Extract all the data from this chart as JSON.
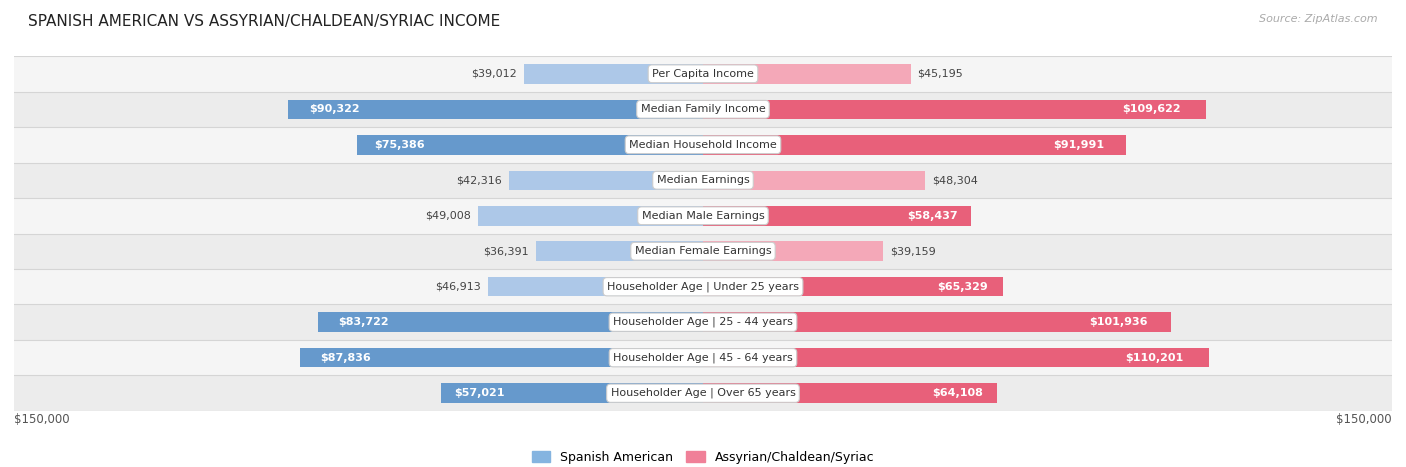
{
  "title": "SPANISH AMERICAN VS ASSYRIAN/CHALDEAN/SYRIAC INCOME",
  "source": "Source: ZipAtlas.com",
  "categories": [
    "Per Capita Income",
    "Median Family Income",
    "Median Household Income",
    "Median Earnings",
    "Median Male Earnings",
    "Median Female Earnings",
    "Householder Age | Under 25 years",
    "Householder Age | 25 - 44 years",
    "Householder Age | 45 - 64 years",
    "Householder Age | Over 65 years"
  ],
  "spanish_american": [
    39012,
    90322,
    75386,
    42316,
    49008,
    36391,
    46913,
    83722,
    87836,
    57021
  ],
  "assyrian": [
    45195,
    109622,
    91991,
    48304,
    58437,
    39159,
    65329,
    101936,
    110201,
    64108
  ],
  "max_value": 150000,
  "spanish_color_dark": "#6699cc",
  "spanish_color_light": "#adc8e8",
  "assyrian_color_dark": "#e8607a",
  "assyrian_color_light": "#f4a8b8",
  "row_bg_even": "#f5f5f5",
  "row_bg_odd": "#ececec",
  "background_color": "#ffffff",
  "label_box_facecolor": "#ffffff",
  "label_box_edgecolor": "#cccccc",
  "dark_text_color": "#444444",
  "white_text_color": "#ffffff",
  "legend_spanish_color": "#85b4e0",
  "legend_assyrian_color": "#f08098",
  "inside_label_threshold": 55000,
  "title_fontsize": 11,
  "source_fontsize": 8,
  "bar_label_fontsize": 8,
  "cat_label_fontsize": 8
}
